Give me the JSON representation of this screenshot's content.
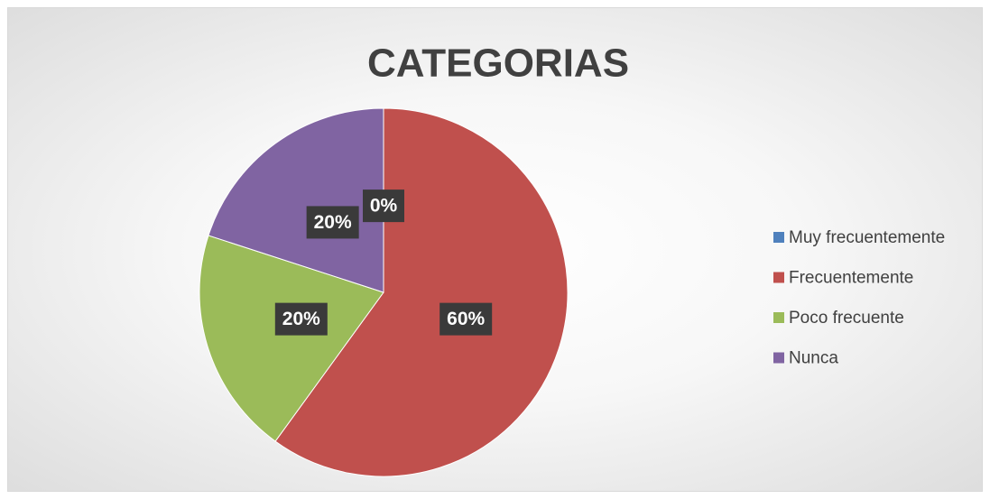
{
  "chart_data": {
    "type": "pie",
    "title": "CATEGORIAS",
    "categories": [
      "Muy frecuentemente",
      "Frecuentemente",
      "Poco frecuente",
      "Nunca"
    ],
    "values": [
      0,
      60,
      20,
      20
    ],
    "value_labels": [
      "0%",
      "60%",
      "20%",
      "20%"
    ],
    "colors": [
      "#4f81bd",
      "#c0504d",
      "#9bbb59",
      "#8064a2"
    ],
    "legend": "right"
  }
}
